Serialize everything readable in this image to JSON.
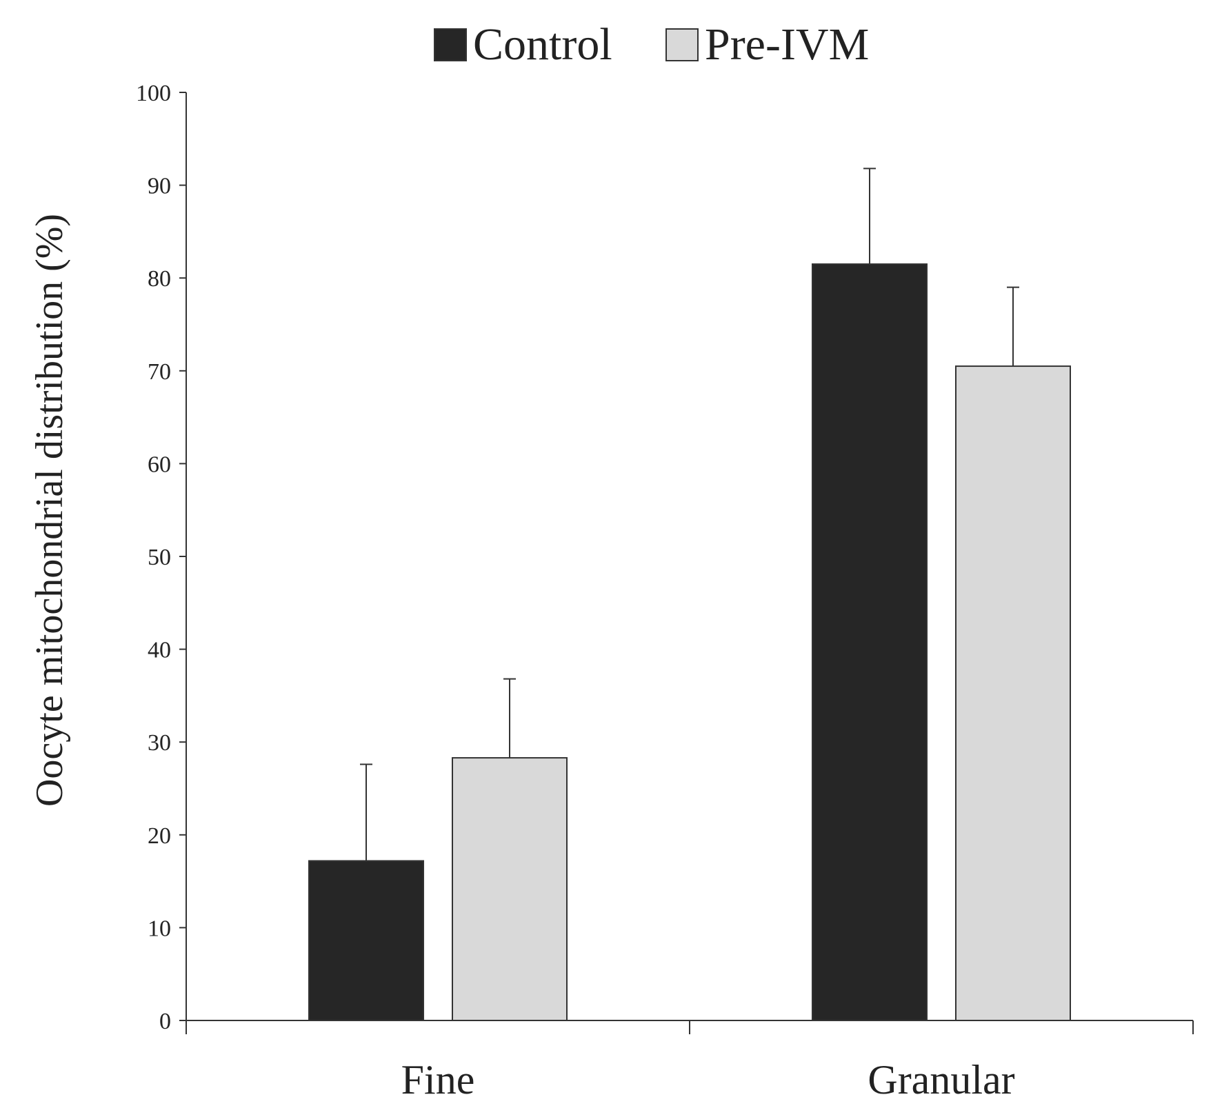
{
  "chart_data": {
    "type": "bar",
    "title": "",
    "xlabel": "",
    "ylabel": "Oocyte mitochondrial distribution (%)",
    "categories": [
      "Fine",
      "Granular"
    ],
    "series": [
      {
        "name": "Control",
        "values": [
          17.2,
          81.5
        ],
        "errors": [
          10.4,
          10.3
        ],
        "color": "#262626"
      },
      {
        "name": "Pre-IVM",
        "values": [
          28.3,
          70.5
        ],
        "errors": [
          8.5,
          8.5
        ],
        "color": "#d9d9d9"
      }
    ],
    "ylim": [
      0,
      100
    ],
    "yticks": [
      0,
      10,
      20,
      30,
      40,
      50,
      60,
      70,
      80,
      90,
      100
    ],
    "grid": false,
    "legend": {
      "position": "top-center"
    },
    "colors": {
      "axis": "#333333",
      "text": "#222222",
      "background": "#ffffff"
    }
  }
}
